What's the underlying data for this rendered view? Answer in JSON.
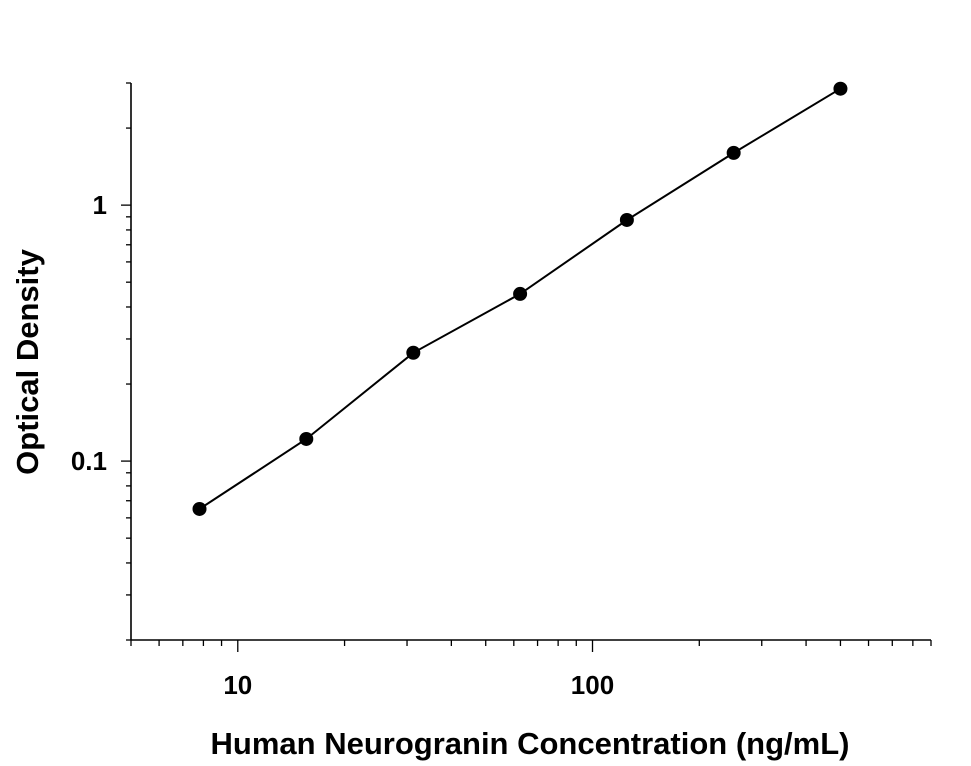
{
  "chart_data": {
    "type": "scatter",
    "title": "",
    "xlabel": "Human Neurogranin Concentration (ng/mL)",
    "ylabel": "Optical Density",
    "x_scale": "log",
    "y_scale": "log",
    "xlim": [
      5,
      900
    ],
    "ylim": [
      0.02,
      3.0
    ],
    "x_ticks": [
      {
        "value": 10,
        "label": "10"
      },
      {
        "value": 100,
        "label": "100"
      }
    ],
    "y_ticks": [
      {
        "value": 0.1,
        "label": "0.1"
      },
      {
        "value": 1,
        "label": "1"
      }
    ],
    "grid": false,
    "legend": "none",
    "series": [
      {
        "x": [
          7.8,
          15.6,
          31.25,
          62.5,
          125,
          250,
          500
        ],
        "y": [
          0.065,
          0.122,
          0.265,
          0.45,
          0.875,
          1.6,
          2.85
        ]
      }
    ],
    "fit_line": true,
    "colors": {
      "point": "#000000",
      "line": "#000000",
      "axis": "#000000"
    }
  }
}
